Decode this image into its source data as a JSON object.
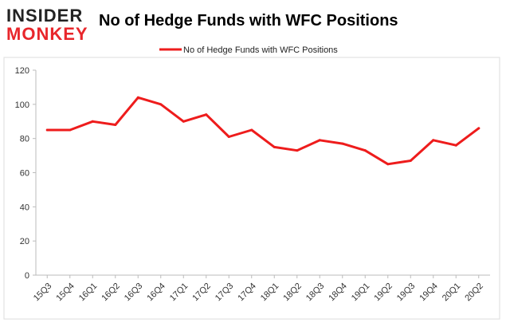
{
  "branding": {
    "logo_top": "INSIDER",
    "logo_bottom": "MONKEY",
    "logo_top_color": "#222222",
    "logo_bottom_color": "#e8262b"
  },
  "chart_data": {
    "type": "line",
    "title": "No of Hedge Funds with WFC Positions",
    "xlabel": "",
    "ylabel": "",
    "categories": [
      "15Q3",
      "15Q4",
      "16Q1",
      "16Q2",
      "16Q3",
      "16Q4",
      "17Q1",
      "17Q2",
      "17Q3",
      "17Q4",
      "18Q1",
      "18Q2",
      "18Q3",
      "18Q4",
      "19Q1",
      "19Q2",
      "19Q3",
      "19Q4",
      "20Q1",
      "20Q2"
    ],
    "series": [
      {
        "name": "No of Hedge Funds with WFC Positions",
        "color": "#ee1c1c",
        "values": [
          85,
          85,
          90,
          88,
          104,
          100,
          90,
          94,
          81,
          85,
          75,
          73,
          79,
          77,
          73,
          65,
          67,
          79,
          76,
          86
        ]
      }
    ],
    "ylim": [
      0,
      120
    ],
    "yticks": [
      0,
      20,
      40,
      60,
      80,
      100,
      120
    ],
    "grid": false,
    "legend_position": "top-center"
  }
}
